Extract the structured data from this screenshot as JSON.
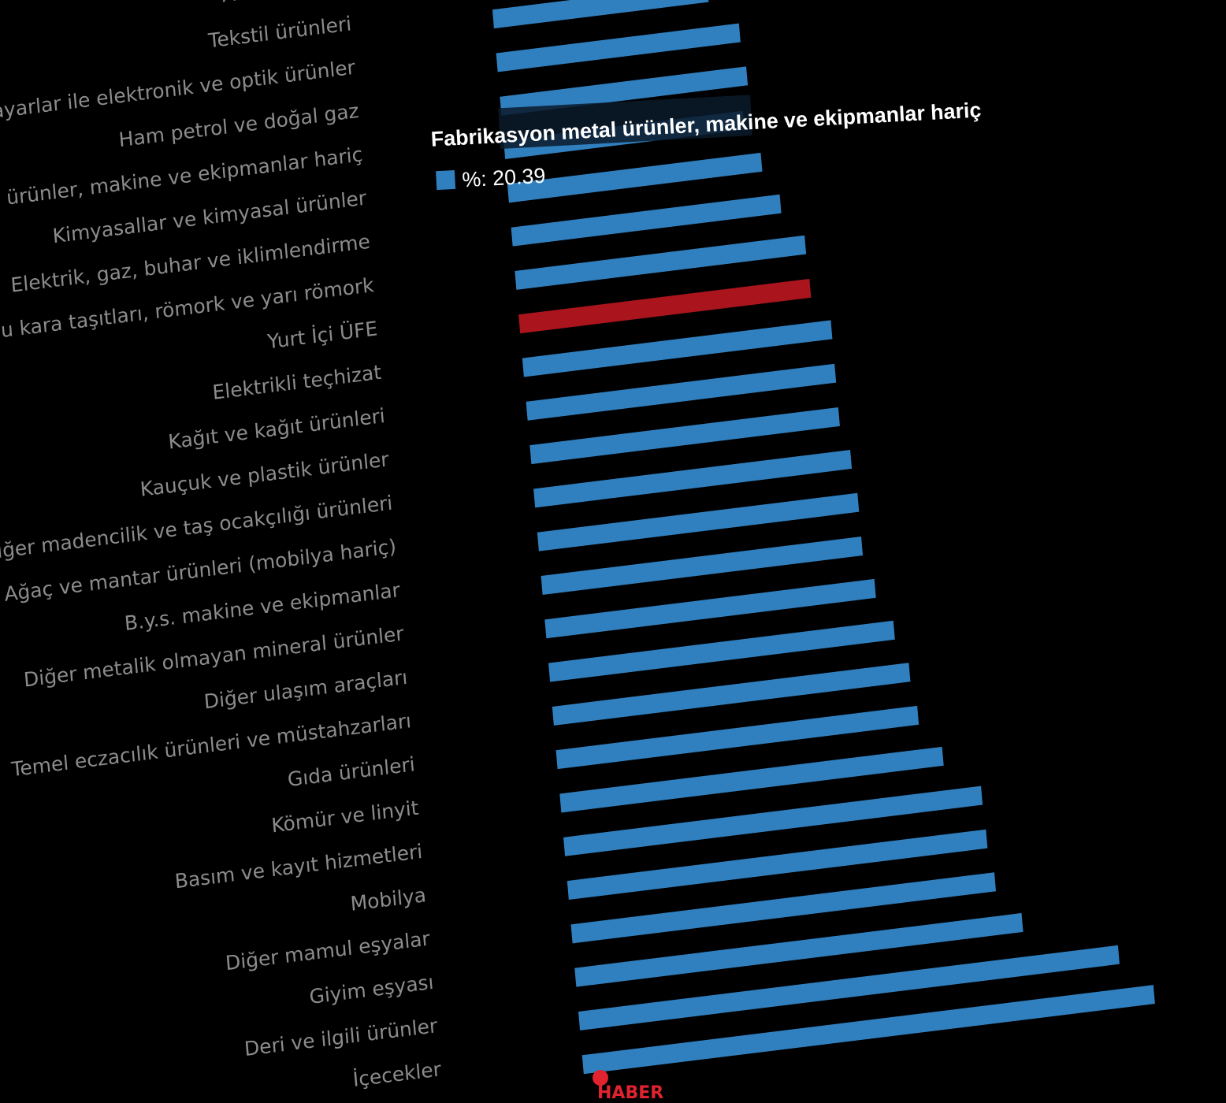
{
  "chart_data": {
    "type": "bar",
    "orientation": "horizontal",
    "categories": [
      "Ana metaller",
      "Tekstil ürünleri",
      "Bilgisayarlar ile elektronik ve optik ürünler",
      "Ham petrol ve doğal gaz",
      "Fabrikasyon metal ürünler, makine ve ekipmanlar hariç",
      "Kimyasallar ve kimyasal ürünler",
      "Elektrik, gaz, buhar ve iklimlendirme",
      "Motorlu kara taşıtları, römork ve yarı römork",
      "Yurt İçi ÜFE",
      "Elektrikli teçhizat",
      "Kağıt ve kağıt ürünleri",
      "Kauçuk ve plastik ürünler",
      "Diğer madencilik ve taş ocakçılığı ürünleri",
      "Ağaç ve mantar ürünleri (mobilya hariç)",
      "B.y.s. makine ve ekipmanlar",
      "Diğer metalik olmayan mineral ürünler",
      "Diğer ulaşım araçları",
      "Temel eczacılık ürünleri ve müstahzarları",
      "Gıda ürünleri",
      "Kömür ve linyit",
      "Basım ve kayıt hizmetleri",
      "Mobilya",
      "Diğer mamul eşyalar",
      "Giyim eşyası",
      "Deri ve ilgili ürünler",
      "İçecekler"
    ],
    "visible_labels": [
      "Ana metaller",
      "Tekstil ürünleri",
      "ayarlar ile elektronik ve optik ürünler",
      "Ham petrol ve doğal gaz",
      "l ürünler, makine ve ekipmanlar hariç",
      "Kimyasallar ve kimyasal ürünler",
      "Elektrik, gaz, buhar ve iklimlendirme",
      "u kara taşıtları, römork ve yarı römork",
      "Yurt İçi ÜFE",
      "Elektrikli teçhizat",
      "Kağıt ve kağıt ürünleri",
      "Kauçuk ve plastik ürünler",
      "iğer madencilik ve taş ocakçılığı ürünleri",
      "Ağaç ve mantar ürünleri (mobilya hariç)",
      "B.y.s. makine ve ekipmanlar",
      "Diğer metalik olmayan mineral ürünler",
      "Diğer ulaşım araçları",
      "Temel eczacılık ürünleri ve müstahzarları",
      "Gıda ürünleri",
      "Kömür ve linyit",
      "Basım ve kayıt hizmetleri",
      "Mobilya",
      "Diğer mamul eşyalar",
      "Giyim eşyası",
      "Deri ve ilgili ürünler",
      "İçecekler"
    ],
    "values": [
      16.9,
      18.3,
      20.7,
      21.0,
      20.39,
      21.6,
      22.9,
      24.7,
      24.8,
      26.3,
      26.3,
      26.3,
      27.0,
      27.3,
      27.3,
      28.1,
      29.4,
      30.4,
      30.8,
      32.6,
      35.6,
      35.7,
      36.1,
      38.1,
      46.0,
      48.7
    ],
    "highlight_category": "Yurt İçi ÜFE",
    "xlim": [
      0,
      55
    ],
    "colors": {
      "bar": "#3080c0",
      "highlight": "#aa141c",
      "label": "#8c8c8c",
      "background": "#000000"
    },
    "grid": false,
    "legend": "none"
  },
  "tooltip": {
    "title": "Fabrikasyon metal ürünler, makine ve ekipmanlar hariç",
    "value_text": "%: 20.39",
    "swatch_color": "#3080c0"
  },
  "watermark": {
    "text": "HABER",
    "color": "#e0232e"
  }
}
